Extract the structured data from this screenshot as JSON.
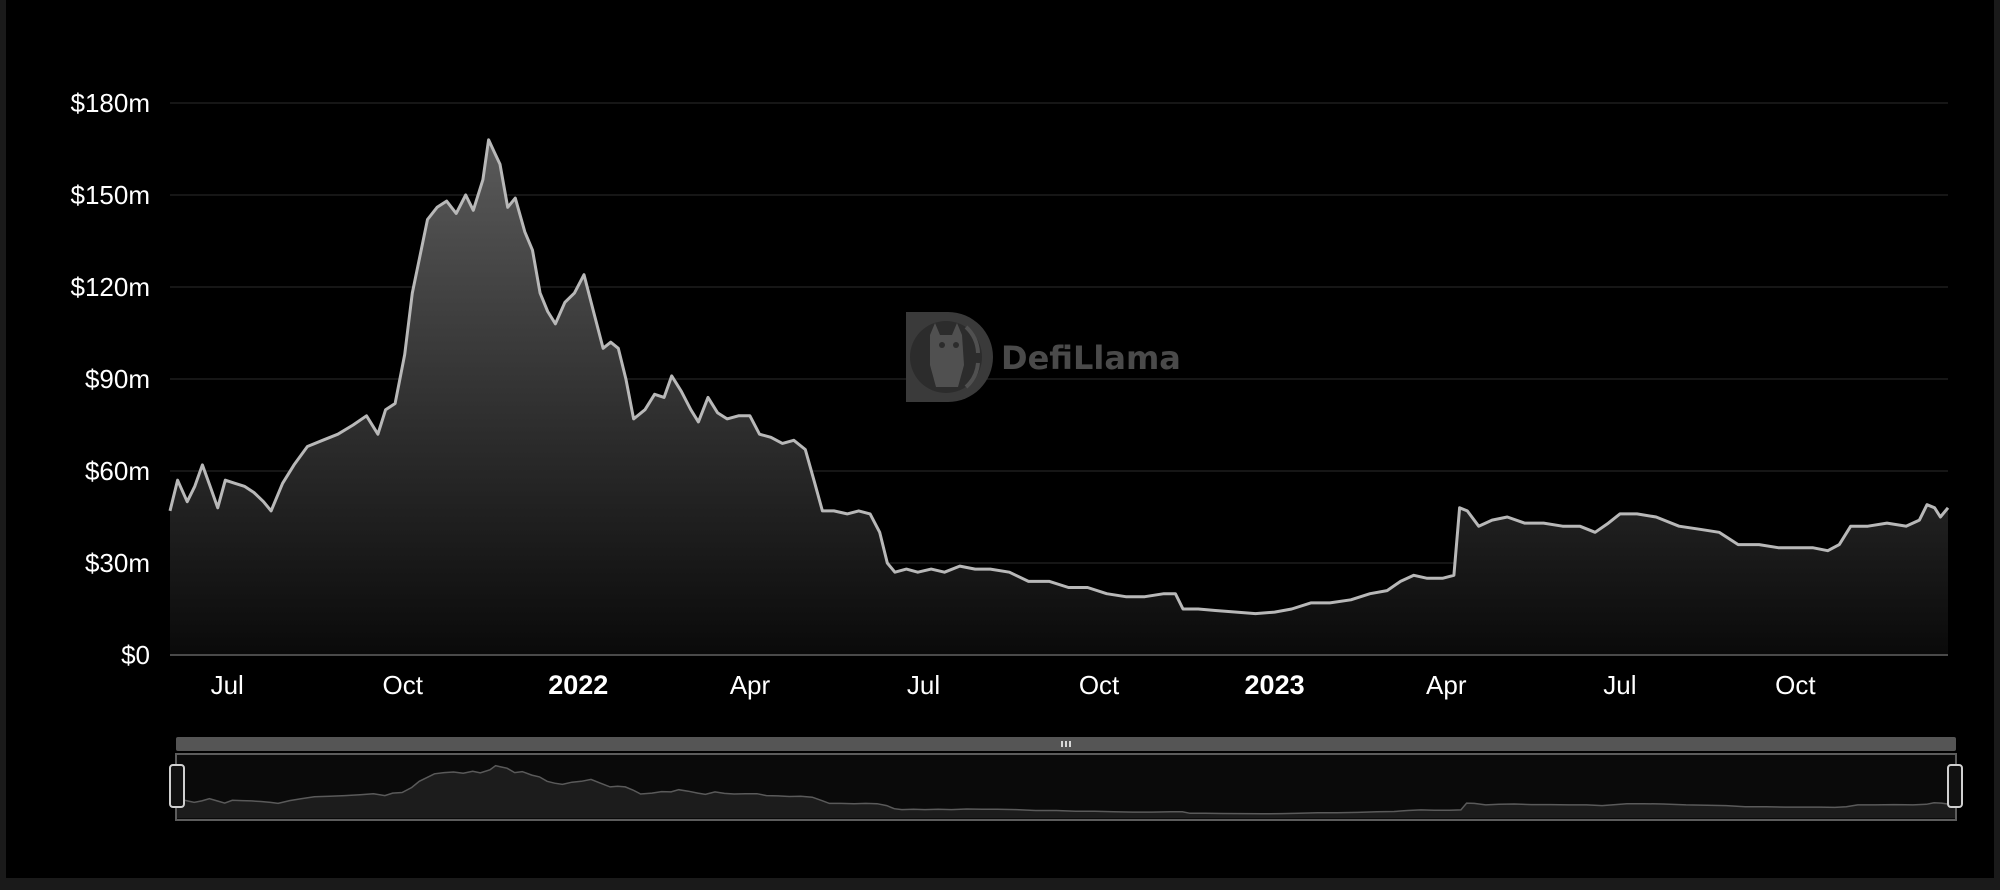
{
  "chart_data": {
    "type": "area",
    "title": "",
    "xlabel": "",
    "ylabel": "",
    "y_unit_prefix": "$",
    "y_unit_suffix": "m",
    "ylim": [
      0,
      180
    ],
    "yticks": [
      {
        "value": 0,
        "label": "$0"
      },
      {
        "value": 30,
        "label": "$30m"
      },
      {
        "value": 60,
        "label": "$60m"
      },
      {
        "value": 90,
        "label": "$90m"
      },
      {
        "value": 120,
        "label": "$120m"
      },
      {
        "value": 150,
        "label": "$150m"
      },
      {
        "value": 180,
        "label": "$180m"
      }
    ],
    "xlim": [
      "2021-06-01",
      "2023-12-20"
    ],
    "xticks": [
      {
        "date": "2021-07-01",
        "label": "Jul",
        "bold": false
      },
      {
        "date": "2021-10-01",
        "label": "Oct",
        "bold": false
      },
      {
        "date": "2022-01-01",
        "label": "2022",
        "bold": true
      },
      {
        "date": "2022-04-01",
        "label": "Apr",
        "bold": false
      },
      {
        "date": "2022-07-01",
        "label": "Jul",
        "bold": false
      },
      {
        "date": "2022-10-01",
        "label": "Oct",
        "bold": false
      },
      {
        "date": "2023-01-01",
        "label": "2023",
        "bold": true
      },
      {
        "date": "2023-04-01",
        "label": "Apr",
        "bold": false
      },
      {
        "date": "2023-07-01",
        "label": "Jul",
        "bold": false
      },
      {
        "date": "2023-10-01",
        "label": "Oct",
        "bold": false
      }
    ],
    "grid": true,
    "legend": "none",
    "colors": {
      "line": "#b8b8b8",
      "area_top": "#5a5a5a",
      "area_bottom": "#0a0a0a",
      "grid": "#1e1e1e",
      "axis": "#4a4a4a",
      "slider_bar": "#555555",
      "slider_fill": "#1c1c1c"
    },
    "series": [
      {
        "points": [
          [
            "2021-06-01",
            47
          ],
          [
            "2021-06-05",
            57
          ],
          [
            "2021-06-10",
            50
          ],
          [
            "2021-06-14",
            55
          ],
          [
            "2021-06-18",
            62
          ],
          [
            "2021-06-22",
            55
          ],
          [
            "2021-06-26",
            48
          ],
          [
            "2021-06-30",
            57
          ],
          [
            "2021-07-05",
            56
          ],
          [
            "2021-07-10",
            55
          ],
          [
            "2021-07-15",
            53
          ],
          [
            "2021-07-20",
            50
          ],
          [
            "2021-07-24",
            47
          ],
          [
            "2021-07-30",
            56
          ],
          [
            "2021-08-05",
            62
          ],
          [
            "2021-08-12",
            68
          ],
          [
            "2021-08-20",
            70
          ],
          [
            "2021-08-28",
            72
          ],
          [
            "2021-09-05",
            75
          ],
          [
            "2021-09-12",
            78
          ],
          [
            "2021-09-18",
            72
          ],
          [
            "2021-09-22",
            80
          ],
          [
            "2021-09-27",
            82
          ],
          [
            "2021-10-02",
            98
          ],
          [
            "2021-10-06",
            118
          ],
          [
            "2021-10-10",
            130
          ],
          [
            "2021-10-14",
            142
          ],
          [
            "2021-10-19",
            146
          ],
          [
            "2021-10-24",
            148
          ],
          [
            "2021-10-29",
            144
          ],
          [
            "2021-11-03",
            150
          ],
          [
            "2021-11-07",
            145
          ],
          [
            "2021-11-12",
            155
          ],
          [
            "2021-11-15",
            168
          ],
          [
            "2021-11-18",
            164
          ],
          [
            "2021-11-21",
            160
          ],
          [
            "2021-11-25",
            146
          ],
          [
            "2021-11-29",
            149
          ],
          [
            "2021-12-04",
            138
          ],
          [
            "2021-12-08",
            132
          ],
          [
            "2021-12-12",
            118
          ],
          [
            "2021-12-16",
            112
          ],
          [
            "2021-12-20",
            108
          ],
          [
            "2021-12-25",
            115
          ],
          [
            "2021-12-30",
            118
          ],
          [
            "2022-01-04",
            124
          ],
          [
            "2022-01-09",
            112
          ],
          [
            "2022-01-14",
            100
          ],
          [
            "2022-01-18",
            102
          ],
          [
            "2022-01-22",
            100
          ],
          [
            "2022-01-26",
            90
          ],
          [
            "2022-01-30",
            77
          ],
          [
            "2022-02-05",
            80
          ],
          [
            "2022-02-10",
            85
          ],
          [
            "2022-02-15",
            84
          ],
          [
            "2022-02-19",
            91
          ],
          [
            "2022-02-24",
            86
          ],
          [
            "2022-03-01",
            80
          ],
          [
            "2022-03-05",
            76
          ],
          [
            "2022-03-10",
            84
          ],
          [
            "2022-03-15",
            79
          ],
          [
            "2022-03-20",
            77
          ],
          [
            "2022-03-26",
            78
          ],
          [
            "2022-04-01",
            78
          ],
          [
            "2022-04-06",
            72
          ],
          [
            "2022-04-12",
            71
          ],
          [
            "2022-04-18",
            69
          ],
          [
            "2022-04-24",
            70
          ],
          [
            "2022-04-30",
            67
          ],
          [
            "2022-05-05",
            56
          ],
          [
            "2022-05-09",
            47
          ],
          [
            "2022-05-15",
            47
          ],
          [
            "2022-05-22",
            46
          ],
          [
            "2022-05-28",
            47
          ],
          [
            "2022-06-03",
            46
          ],
          [
            "2022-06-08",
            40
          ],
          [
            "2022-06-12",
            30
          ],
          [
            "2022-06-16",
            27
          ],
          [
            "2022-06-22",
            28
          ],
          [
            "2022-06-28",
            27
          ],
          [
            "2022-07-05",
            28
          ],
          [
            "2022-07-12",
            27
          ],
          [
            "2022-07-20",
            29
          ],
          [
            "2022-07-28",
            28
          ],
          [
            "2022-08-05",
            28
          ],
          [
            "2022-08-15",
            27
          ],
          [
            "2022-08-25",
            24
          ],
          [
            "2022-09-05",
            24
          ],
          [
            "2022-09-15",
            22
          ],
          [
            "2022-09-25",
            22
          ],
          [
            "2022-10-05",
            20
          ],
          [
            "2022-10-15",
            19
          ],
          [
            "2022-10-25",
            19
          ],
          [
            "2022-11-04",
            20
          ],
          [
            "2022-11-10",
            20
          ],
          [
            "2022-11-14",
            15
          ],
          [
            "2022-11-22",
            15
          ],
          [
            "2022-12-01",
            14.5
          ],
          [
            "2022-12-12",
            14
          ],
          [
            "2022-12-22",
            13.5
          ],
          [
            "2023-01-01",
            14
          ],
          [
            "2023-01-10",
            15
          ],
          [
            "2023-01-20",
            17
          ],
          [
            "2023-01-30",
            17
          ],
          [
            "2023-02-10",
            18
          ],
          [
            "2023-02-20",
            20
          ],
          [
            "2023-03-01",
            21
          ],
          [
            "2023-03-08",
            24
          ],
          [
            "2023-03-15",
            26
          ],
          [
            "2023-03-22",
            25
          ],
          [
            "2023-03-30",
            25
          ],
          [
            "2023-04-05",
            26
          ],
          [
            "2023-04-08",
            48
          ],
          [
            "2023-04-12",
            47
          ],
          [
            "2023-04-18",
            42
          ],
          [
            "2023-04-25",
            44
          ],
          [
            "2023-05-03",
            45
          ],
          [
            "2023-05-12",
            43
          ],
          [
            "2023-05-22",
            43
          ],
          [
            "2023-06-01",
            42
          ],
          [
            "2023-06-10",
            42
          ],
          [
            "2023-06-18",
            40
          ],
          [
            "2023-06-25",
            43
          ],
          [
            "2023-07-01",
            46
          ],
          [
            "2023-07-10",
            46
          ],
          [
            "2023-07-20",
            45
          ],
          [
            "2023-08-01",
            42
          ],
          [
            "2023-08-12",
            41
          ],
          [
            "2023-08-22",
            40
          ],
          [
            "2023-09-01",
            36
          ],
          [
            "2023-09-12",
            36
          ],
          [
            "2023-09-22",
            35
          ],
          [
            "2023-10-01",
            35
          ],
          [
            "2023-10-10",
            35
          ],
          [
            "2023-10-18",
            34
          ],
          [
            "2023-10-24",
            36
          ],
          [
            "2023-10-30",
            42
          ],
          [
            "2023-11-08",
            42
          ],
          [
            "2023-11-18",
            43
          ],
          [
            "2023-11-28",
            42
          ],
          [
            "2023-12-05",
            44
          ],
          [
            "2023-12-09",
            49
          ],
          [
            "2023-12-13",
            48
          ],
          [
            "2023-12-16",
            45
          ],
          [
            "2023-12-20",
            48
          ]
        ]
      }
    ]
  },
  "watermark": {
    "text": "DefiLlama",
    "icon": "llama-logo-icon"
  },
  "slider": {
    "handle_icon": "grip-icon",
    "range_start": "2021-06-01",
    "range_end": "2023-12-20"
  }
}
